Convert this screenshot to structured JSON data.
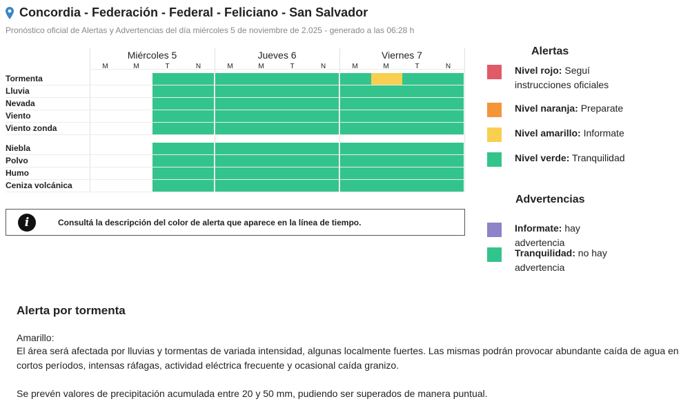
{
  "header": {
    "title": "Concordia - Federación - Federal - Feliciano - San Salvador",
    "subtitle": "Pronóstico oficial de Alertas y Advertencias del día miércoles 5 de noviembre de 2.025 - generado a las 06:28 h"
  },
  "timeline": {
    "days": [
      "Miércoles 5",
      "Jueves 6",
      "Viernes 7"
    ],
    "periods": [
      "M",
      "M",
      "T",
      "N"
    ],
    "rows_alerts": [
      "Tormenta",
      "Lluvia",
      "Nevada",
      "Viento",
      "Viento zonda"
    ],
    "rows_warnings": [
      "Niebla",
      "Polvo",
      "Humo",
      "Ceniza volcánica"
    ],
    "alert_levels": [
      [
        "none",
        "none",
        "verde",
        "verde",
        "verde",
        "verde",
        "verde",
        "verde",
        "verde",
        "amarillo",
        "verde",
        "verde"
      ],
      [
        "none",
        "none",
        "verde",
        "verde",
        "verde",
        "verde",
        "verde",
        "verde",
        "verde",
        "verde",
        "verde",
        "verde"
      ],
      [
        "none",
        "none",
        "verde",
        "verde",
        "verde",
        "verde",
        "verde",
        "verde",
        "verde",
        "verde",
        "verde",
        "verde"
      ],
      [
        "none",
        "none",
        "verde",
        "verde",
        "verde",
        "verde",
        "verde",
        "verde",
        "verde",
        "verde",
        "verde",
        "verde"
      ],
      [
        "none",
        "none",
        "verde",
        "verde",
        "verde",
        "verde",
        "verde",
        "verde",
        "verde",
        "verde",
        "verde",
        "verde"
      ]
    ],
    "warning_levels": [
      [
        "none",
        "none",
        "verde",
        "verde",
        "verde",
        "verde",
        "verde",
        "verde",
        "verde",
        "verde",
        "verde",
        "verde"
      ],
      [
        "none",
        "none",
        "verde",
        "verde",
        "verde",
        "verde",
        "verde",
        "verde",
        "verde",
        "verde",
        "verde",
        "verde"
      ],
      [
        "none",
        "none",
        "verde",
        "verde",
        "verde",
        "verde",
        "verde",
        "verde",
        "verde",
        "verde",
        "verde",
        "verde"
      ],
      [
        "none",
        "none",
        "verde",
        "verde",
        "verde",
        "verde",
        "verde",
        "verde",
        "verde",
        "verde",
        "verde",
        "verde"
      ]
    ]
  },
  "info_box": {
    "text": "Consultá la descripción del color de alerta que aparece en la línea de tiempo."
  },
  "legend": {
    "alerts_title": "Alertas",
    "alerts": [
      {
        "level": "Nivel rojo:",
        "desc": " Seguí instrucciones oficiales",
        "color": "#e05a68"
      },
      {
        "level": "Nivel naranja:",
        "desc": " Preparate",
        "color": "#f4953a"
      },
      {
        "level": "Nivel amarillo:",
        "desc": " Informate",
        "color": "#f8cf50"
      },
      {
        "level": "Nivel verde:",
        "desc": " Tranquilidad",
        "color": "#33c48d"
      }
    ],
    "warnings_title": "Advertencias",
    "warnings": [
      {
        "level": "Informate:",
        "desc": " hay advertencia",
        "color": "#8e82c8"
      },
      {
        "level": "Tranquilidad:",
        "desc": " no hay advertencia",
        "color": "#33c48d"
      }
    ]
  },
  "detail": {
    "title": "Alerta por tormenta",
    "level_label": "Amarillo:",
    "paragraph1": "El área será afectada por lluvias y tormentas de variada intensidad, algunas localmente fuertes. Las mismas podrán provocar abundante caída de agua en cortos períodos, intensas ráfagas, actividad eléctrica frecuente y ocasional caída granizo.",
    "paragraph2": "Se prevén valores de precipitación acumulada entre 20 y 50 mm, pudiendo ser superados de manera puntual."
  },
  "colors": {
    "verde": "#33c48d",
    "amarillo": "#f8cf50",
    "naranja": "#f4953a",
    "rojo": "#e05a68",
    "advertencia": "#8e82c8",
    "location_pin": "#3b86c6"
  },
  "icons": {
    "location": "map-pin-icon",
    "info": "info-icon"
  }
}
